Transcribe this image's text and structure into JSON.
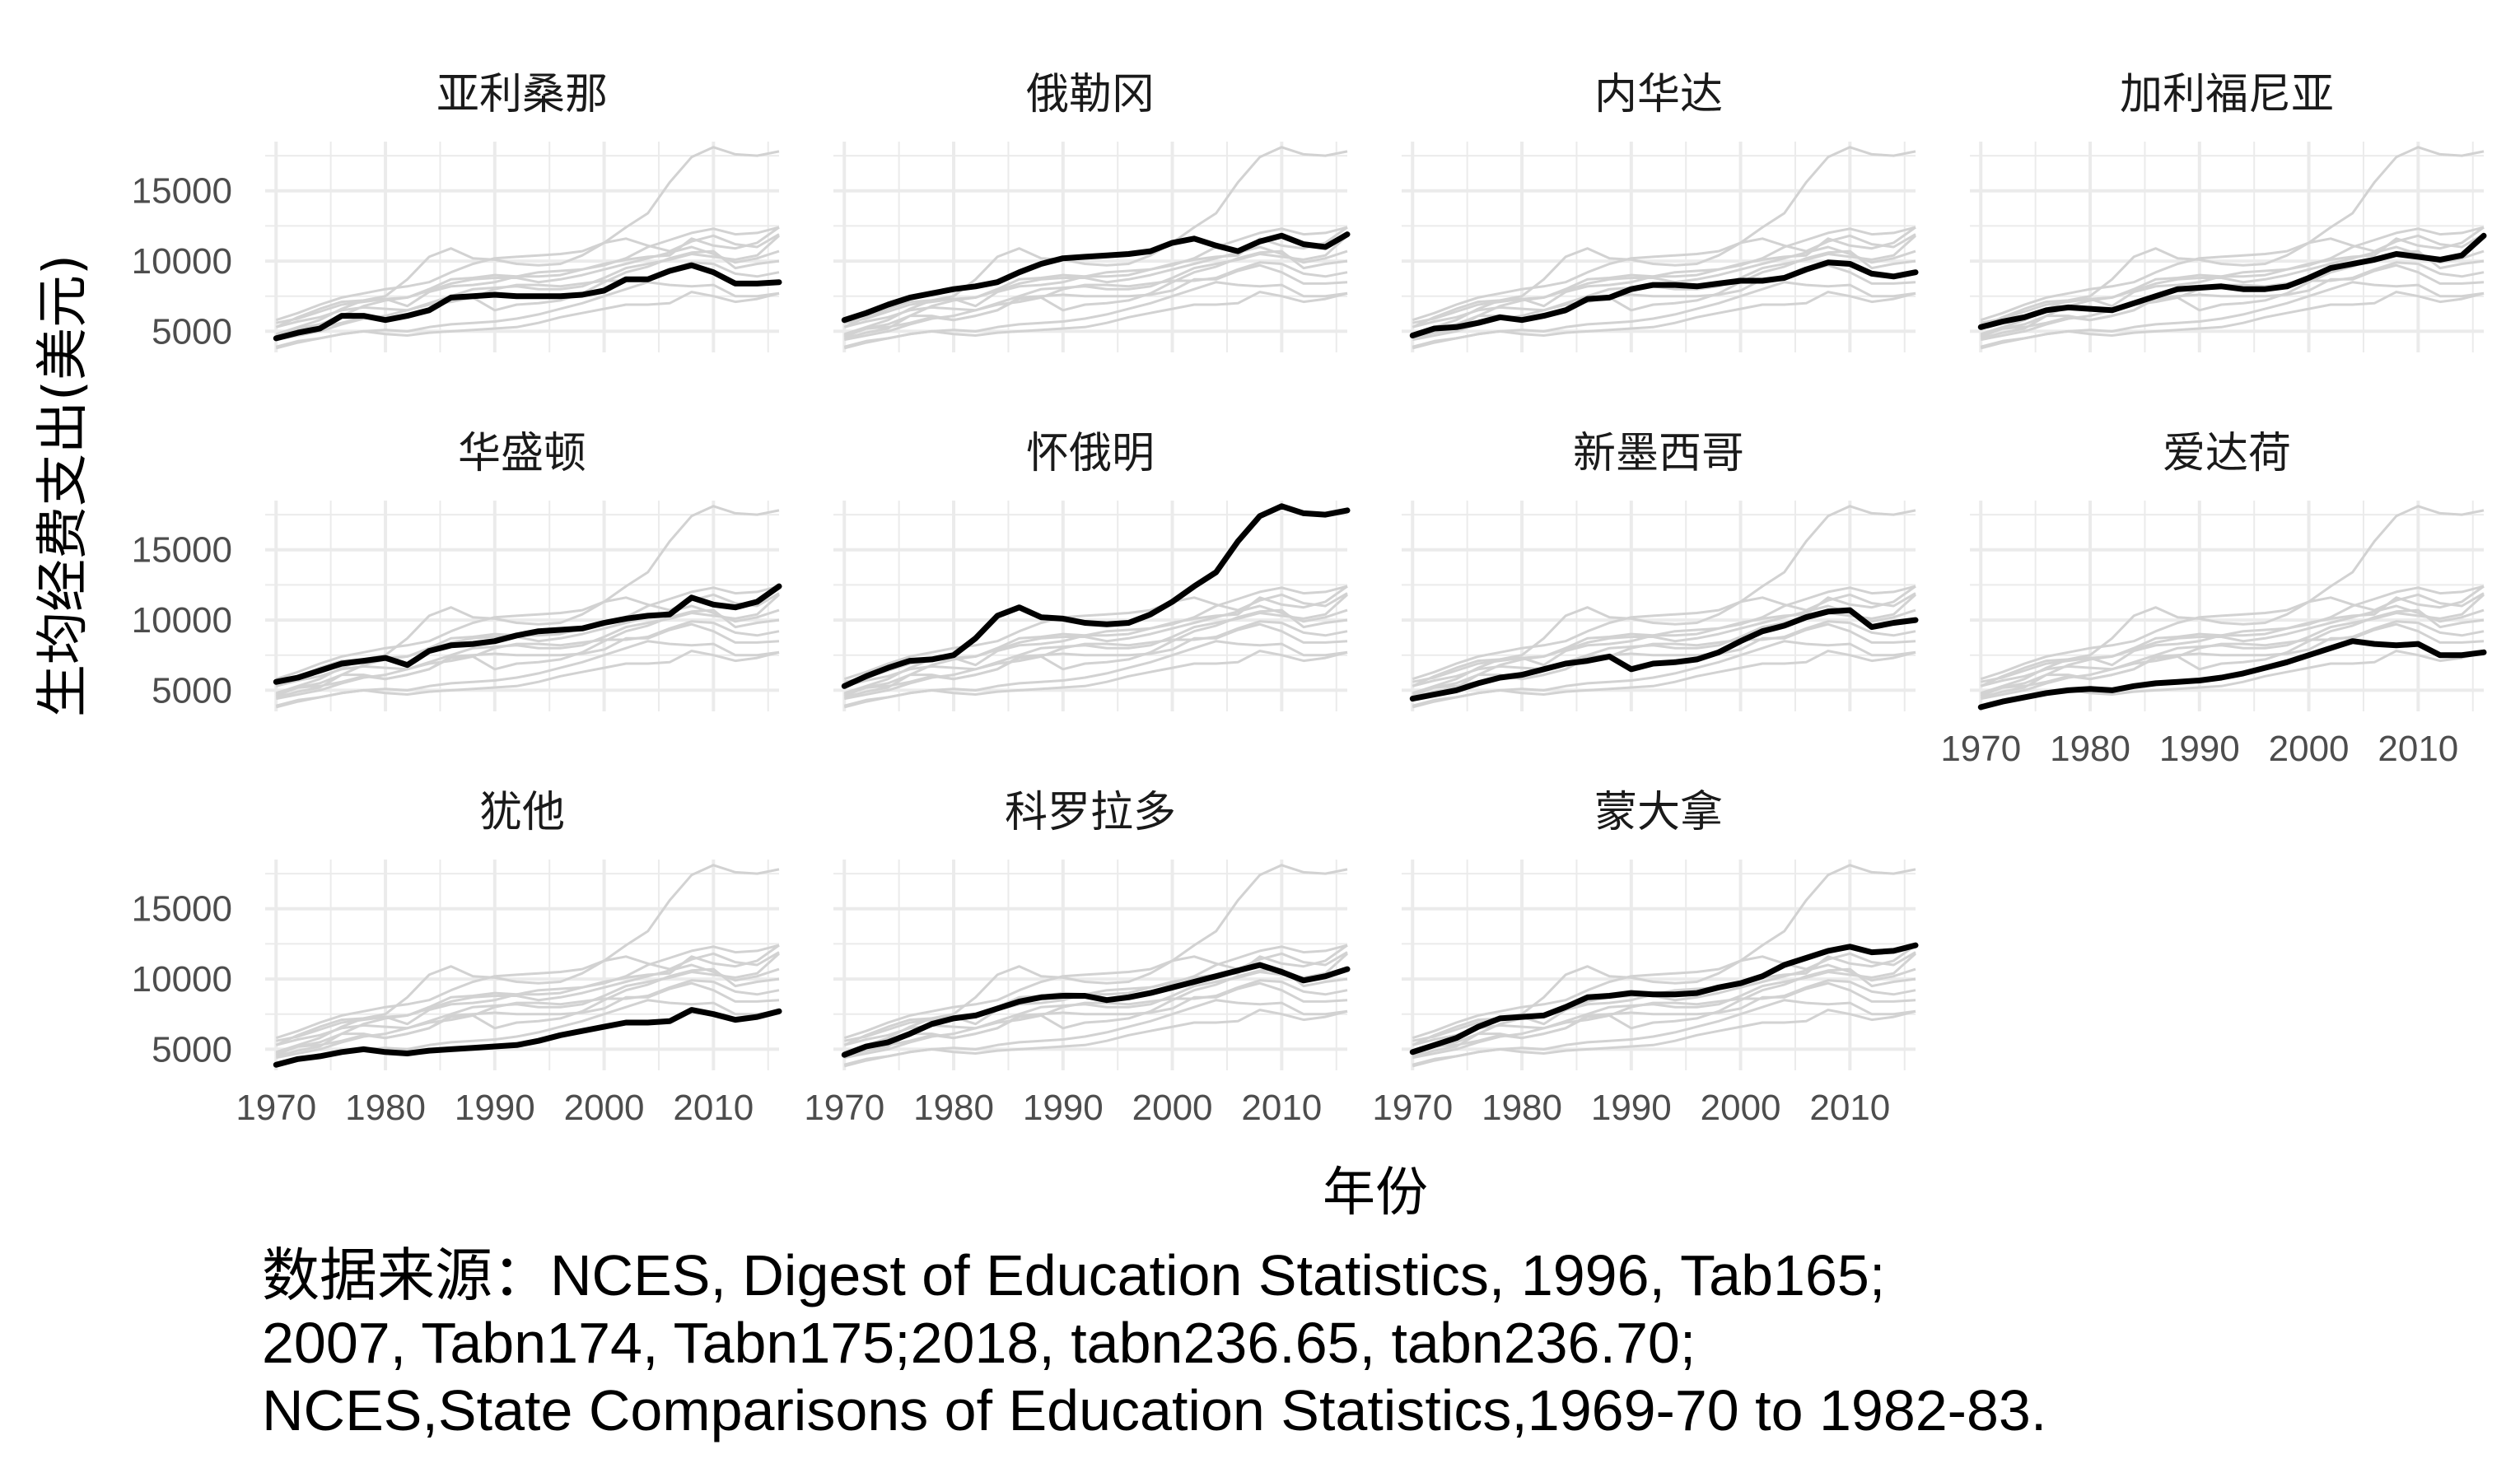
{
  "chart_data": {
    "type": "line",
    "title": "",
    "xlabel": "年份",
    "ylabel": "生均经费支出(美元)",
    "xlim": [
      1969,
      2016
    ],
    "ylim": [
      3500,
      18500
    ],
    "x_ticks": [
      "1970",
      "1980",
      "1990",
      "2000",
      "2010"
    ],
    "y_ticks": [
      "5000",
      "10000",
      "15000"
    ],
    "grid": true,
    "legend": "none",
    "x": [
      1970,
      1972,
      1974,
      1976,
      1978,
      1980,
      1982,
      1984,
      1986,
      1988,
      1990,
      1992,
      1994,
      1996,
      1998,
      2000,
      2002,
      2004,
      2006,
      2008,
      2010,
      2012,
      2014,
      2016
    ],
    "series": [
      {
        "name": "亚利桑那",
        "values": [
          4500,
          4900,
          5200,
          6100,
          6100,
          5800,
          6100,
          6500,
          7400,
          7500,
          7600,
          7500,
          7500,
          7500,
          7600,
          7900,
          8700,
          8700,
          9300,
          9700,
          9200,
          8400,
          8400,
          8500
        ]
      },
      {
        "name": "俄勒冈",
        "values": [
          5800,
          6300,
          6900,
          7400,
          7700,
          8000,
          8200,
          8500,
          9200,
          9800,
          10200,
          10300,
          10400,
          10500,
          10700,
          11300,
          11600,
          11100,
          10700,
          11400,
          11800,
          11200,
          11000,
          11900
        ]
      },
      {
        "name": "内华达",
        "values": [
          4700,
          5200,
          5300,
          5600,
          6000,
          5800,
          6100,
          6500,
          7300,
          7400,
          8000,
          8300,
          8300,
          8200,
          8400,
          8600,
          8600,
          8800,
          9400,
          9900,
          9800,
          9100,
          8900,
          9200
        ]
      },
      {
        "name": "加利福尼亚",
        "values": [
          5300,
          5700,
          6000,
          6500,
          6700,
          6600,
          6500,
          7000,
          7500,
          8000,
          8100,
          8200,
          8000,
          8000,
          8200,
          8800,
          9500,
          9800,
          10100,
          10500,
          10300,
          10100,
          10400,
          11800
        ]
      },
      {
        "name": "华盛顿",
        "values": [
          5600,
          5900,
          6400,
          6900,
          7100,
          7300,
          6800,
          7800,
          8200,
          8300,
          8500,
          8900,
          9200,
          9300,
          9400,
          9800,
          10100,
          10300,
          10400,
          11600,
          11100,
          10900,
          11300,
          12400
        ]
      },
      {
        "name": "怀俄明",
        "values": [
          5300,
          6000,
          6600,
          7100,
          7200,
          7500,
          8700,
          10300,
          10900,
          10200,
          10100,
          9800,
          9700,
          9800,
          10400,
          11300,
          12400,
          13400,
          15600,
          17400,
          18100,
          17600,
          17500,
          17800
        ]
      },
      {
        "name": "新墨西哥",
        "values": [
          4400,
          4700,
          5000,
          5500,
          5900,
          6100,
          6500,
          6900,
          7100,
          7400,
          6500,
          6900,
          7000,
          7200,
          7700,
          8500,
          9200,
          9600,
          10200,
          10600,
          10700,
          9500,
          9800,
          10000
        ]
      },
      {
        "name": "爱达荷",
        "values": [
          3800,
          4200,
          4500,
          4800,
          5000,
          5100,
          5000,
          5300,
          5500,
          5600,
          5700,
          5900,
          6200,
          6600,
          7000,
          7500,
          8000,
          8500,
          8300,
          8200,
          8300,
          7500,
          7500,
          7700
        ]
      },
      {
        "name": "犹他",
        "values": [
          3900,
          4300,
          4500,
          4800,
          5000,
          4800,
          4700,
          4900,
          5000,
          5100,
          5200,
          5300,
          5600,
          6000,
          6300,
          6600,
          6900,
          6900,
          7000,
          7800,
          7500,
          7100,
          7300,
          7700
        ]
      },
      {
        "name": "科罗拉多",
        "values": [
          4600,
          5200,
          5500,
          6100,
          6800,
          7200,
          7400,
          7900,
          8400,
          8700,
          8800,
          8800,
          8500,
          8700,
          9000,
          9400,
          9800,
          10200,
          10600,
          11000,
          10500,
          9900,
          10200,
          10700
        ]
      },
      {
        "name": "蒙大拿",
        "values": [
          4800,
          5300,
          5800,
          6600,
          7200,
          7300,
          7400,
          8000,
          8700,
          8800,
          9000,
          8900,
          8900,
          9000,
          9400,
          9700,
          10200,
          11000,
          11500,
          12000,
          12300,
          11900,
          12000,
          12400
        ]
      }
    ]
  },
  "caption": {
    "lines": [
      "数据来源：NCES, Digest of Education Statistics, 1996, Tab165;",
      "2007, Tabn174, Tabn175;2018, tabn236.65, tabn236.70;",
      "NCES,State Comparisons of Education Statistics,1969-70 to 1982-83."
    ]
  }
}
